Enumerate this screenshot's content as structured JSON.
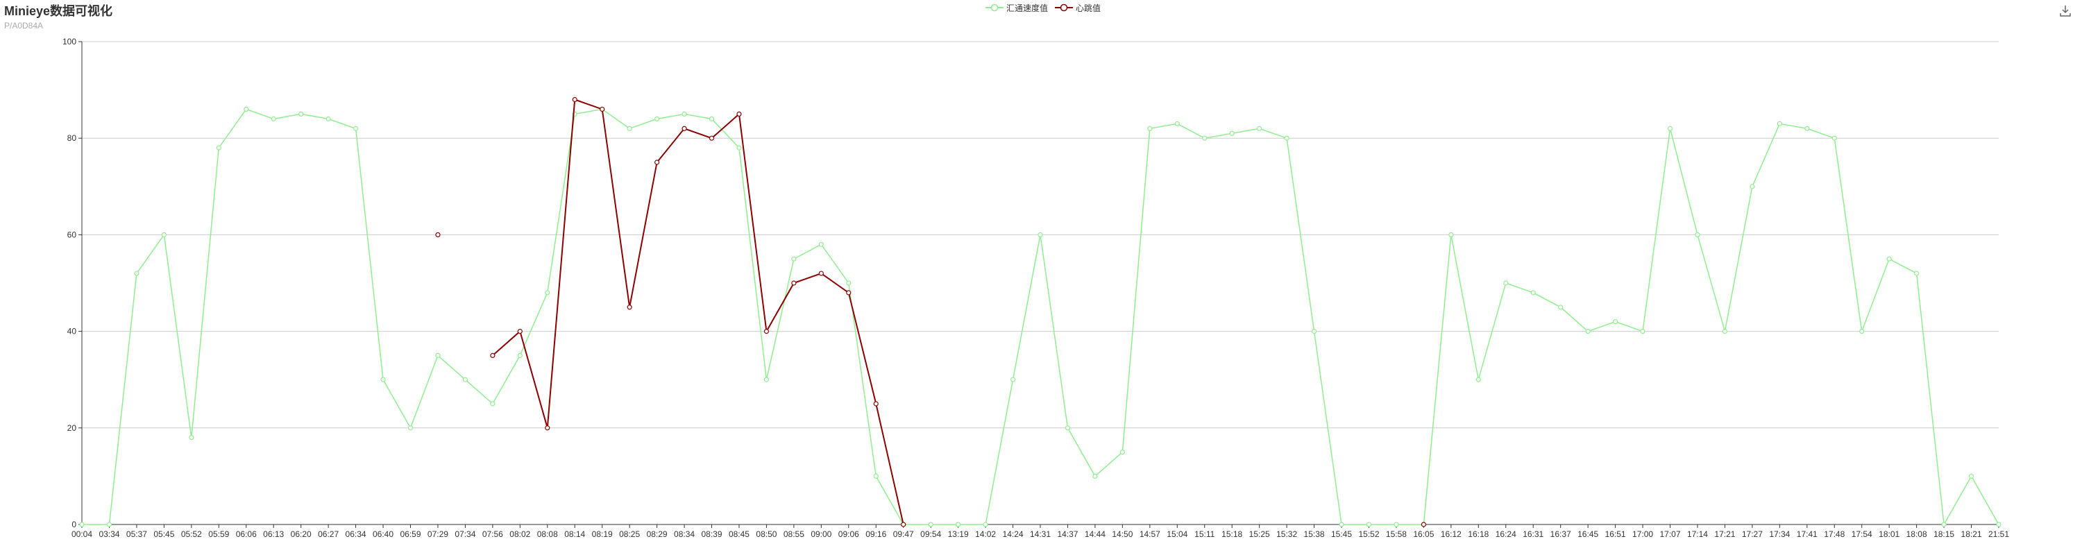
{
  "header": {
    "title": "Minieye数据可视化",
    "subtitle": "P/A0D84A"
  },
  "toolbox": {
    "icon": "download-icon"
  },
  "chart_data": {
    "type": "line",
    "title": "Minieye数据可视化",
    "subtitle": "P/A0D84A",
    "legend_position": "top-center",
    "grid": true,
    "ylim": [
      0,
      100
    ],
    "y_ticks": [
      0,
      20,
      40,
      60,
      80,
      100
    ],
    "categories": [
      "00:04",
      "03:34",
      "05:37",
      "05:45",
      "05:52",
      "05:59",
      "06:06",
      "06:13",
      "06:20",
      "06:27",
      "06:34",
      "06:40",
      "06:59",
      "07:29",
      "07:34",
      "07:56",
      "08:02",
      "08:08",
      "08:14",
      "08:19",
      "08:25",
      "08:29",
      "08:34",
      "08:39",
      "08:45",
      "08:50",
      "08:55",
      "09:00",
      "09:06",
      "09:16",
      "09:47",
      "09:54",
      "13:19",
      "14:02",
      "14:24",
      "14:31",
      "14:37",
      "14:44",
      "14:50",
      "14:57",
      "15:04",
      "15:11",
      "15:18",
      "15:25",
      "15:32",
      "15:38",
      "15:45",
      "15:52",
      "15:58",
      "16:05",
      "16:12",
      "16:18",
      "16:24",
      "16:31",
      "16:37",
      "16:45",
      "16:51",
      "17:00",
      "17:07",
      "17:14",
      "17:21",
      "17:27",
      "17:34",
      "17:41",
      "17:48",
      "17:54",
      "18:01",
      "18:08",
      "18:15",
      "18:21",
      "21:51"
    ],
    "series": [
      {
        "name": "汇通速度值",
        "color": "#90ee90",
        "symbol": "circle-hollow",
        "values": [
          0,
          0,
          52,
          60,
          18,
          78,
          86,
          84,
          85,
          84,
          82,
          30,
          20,
          35,
          30,
          25,
          35,
          48,
          85,
          86,
          82,
          84,
          85,
          84,
          78,
          30,
          55,
          58,
          50,
          10,
          0,
          0,
          0,
          0,
          30,
          60,
          20,
          10,
          15,
          82,
          83,
          80,
          81,
          82,
          80,
          40,
          0,
          0,
          0,
          0,
          60,
          30,
          50,
          48,
          45,
          40,
          42,
          40,
          82,
          60,
          40,
          70,
          83,
          82,
          80,
          40,
          55,
          52,
          0,
          10,
          0
        ]
      },
      {
        "name": "心跳值",
        "color": "#8b0000",
        "symbol": "circle-hollow",
        "values": [
          null,
          null,
          null,
          null,
          null,
          null,
          null,
          null,
          null,
          null,
          null,
          null,
          null,
          60,
          null,
          35,
          40,
          20,
          88,
          86,
          45,
          75,
          82,
          80,
          85,
          40,
          50,
          52,
          48,
          25,
          0,
          null,
          null,
          null,
          null,
          null,
          null,
          null,
          null,
          null,
          null,
          null,
          null,
          null,
          null,
          null,
          null,
          null,
          null,
          0,
          null,
          null,
          null,
          null,
          null,
          null,
          null,
          null,
          null,
          null,
          null,
          null,
          null,
          null,
          null,
          null,
          null,
          null,
          null,
          null,
          null
        ]
      }
    ]
  }
}
